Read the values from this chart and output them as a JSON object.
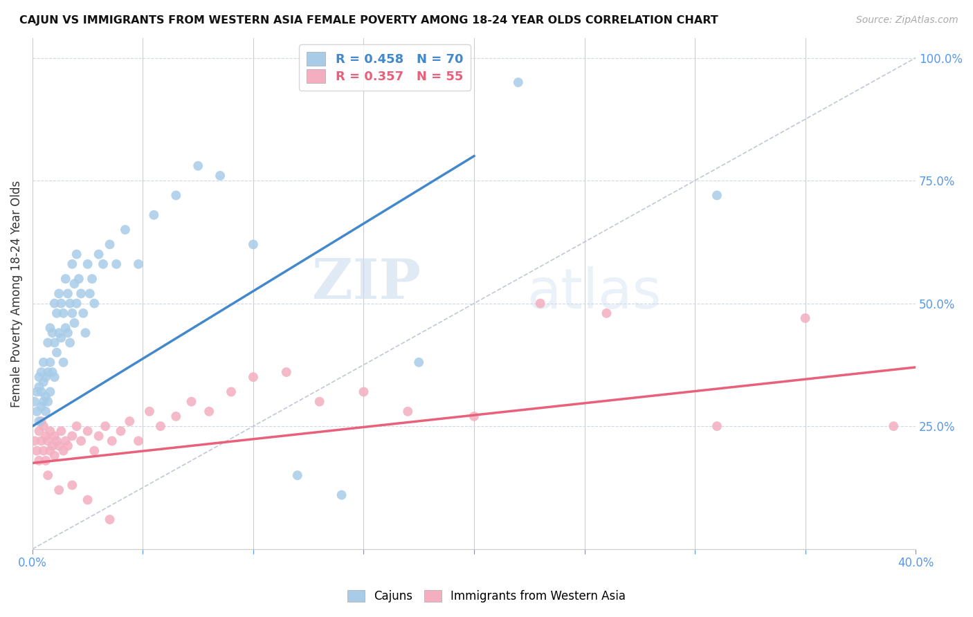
{
  "title": "CAJUN VS IMMIGRANTS FROM WESTERN ASIA FEMALE POVERTY AMONG 18-24 YEAR OLDS CORRELATION CHART",
  "source": "Source: ZipAtlas.com",
  "ylabel": "Female Poverty Among 18-24 Year Olds",
  "blue_R": 0.458,
  "blue_N": 70,
  "pink_R": 0.357,
  "pink_N": 55,
  "blue_color": "#a8cce8",
  "pink_color": "#f4aec0",
  "blue_line_color": "#4488cc",
  "pink_line_color": "#e8607a",
  "ref_line_color": "#c0c8d8",
  "legend_label_blue": "Cajuns",
  "legend_label_pink": "Immigrants from Western Asia",
  "watermark_zip": "ZIP",
  "watermark_atlas": "atlas",
  "blue_line_x": [
    0.0,
    0.2
  ],
  "blue_line_y": [
    0.25,
    0.8
  ],
  "pink_line_x": [
    0.0,
    0.4
  ],
  "pink_line_y": [
    0.175,
    0.37
  ],
  "ref_line_x": [
    0.0,
    0.4
  ],
  "ref_line_y": [
    0.0,
    1.0
  ],
  "xmin": 0.0,
  "xmax": 0.4,
  "ymin": 0.0,
  "ymax": 1.04,
  "blue_scatter_x": [
    0.001,
    0.002,
    0.002,
    0.003,
    0.003,
    0.003,
    0.004,
    0.004,
    0.004,
    0.005,
    0.005,
    0.005,
    0.006,
    0.006,
    0.006,
    0.007,
    0.007,
    0.007,
    0.008,
    0.008,
    0.008,
    0.009,
    0.009,
    0.01,
    0.01,
    0.01,
    0.011,
    0.011,
    0.012,
    0.012,
    0.013,
    0.013,
    0.014,
    0.014,
    0.015,
    0.015,
    0.016,
    0.016,
    0.017,
    0.017,
    0.018,
    0.018,
    0.019,
    0.019,
    0.02,
    0.02,
    0.021,
    0.022,
    0.023,
    0.024,
    0.025,
    0.026,
    0.027,
    0.028,
    0.03,
    0.032,
    0.035,
    0.038,
    0.042,
    0.048,
    0.055,
    0.065,
    0.075,
    0.085,
    0.1,
    0.12,
    0.14,
    0.175,
    0.22,
    0.31
  ],
  "blue_scatter_y": [
    0.3,
    0.32,
    0.28,
    0.35,
    0.33,
    0.26,
    0.32,
    0.29,
    0.36,
    0.3,
    0.34,
    0.38,
    0.31,
    0.28,
    0.35,
    0.42,
    0.36,
    0.3,
    0.45,
    0.38,
    0.32,
    0.44,
    0.36,
    0.5,
    0.42,
    0.35,
    0.48,
    0.4,
    0.52,
    0.44,
    0.5,
    0.43,
    0.48,
    0.38,
    0.55,
    0.45,
    0.52,
    0.44,
    0.5,
    0.42,
    0.58,
    0.48,
    0.54,
    0.46,
    0.6,
    0.5,
    0.55,
    0.52,
    0.48,
    0.44,
    0.58,
    0.52,
    0.55,
    0.5,
    0.6,
    0.58,
    0.62,
    0.58,
    0.65,
    0.58,
    0.68,
    0.72,
    0.78,
    0.76,
    0.62,
    0.15,
    0.11,
    0.38,
    0.95,
    0.72
  ],
  "pink_scatter_x": [
    0.001,
    0.002,
    0.003,
    0.003,
    0.004,
    0.004,
    0.005,
    0.005,
    0.006,
    0.006,
    0.007,
    0.008,
    0.008,
    0.009,
    0.01,
    0.01,
    0.011,
    0.012,
    0.013,
    0.014,
    0.015,
    0.016,
    0.018,
    0.02,
    0.022,
    0.025,
    0.028,
    0.03,
    0.033,
    0.036,
    0.04,
    0.044,
    0.048,
    0.053,
    0.058,
    0.065,
    0.072,
    0.08,
    0.09,
    0.1,
    0.115,
    0.13,
    0.15,
    0.17,
    0.2,
    0.23,
    0.26,
    0.31,
    0.35,
    0.39,
    0.007,
    0.012,
    0.018,
    0.025,
    0.035
  ],
  "pink_scatter_y": [
    0.22,
    0.2,
    0.24,
    0.18,
    0.22,
    0.26,
    0.2,
    0.25,
    0.18,
    0.23,
    0.22,
    0.2,
    0.24,
    0.21,
    0.23,
    0.19,
    0.22,
    0.21,
    0.24,
    0.2,
    0.22,
    0.21,
    0.23,
    0.25,
    0.22,
    0.24,
    0.2,
    0.23,
    0.25,
    0.22,
    0.24,
    0.26,
    0.22,
    0.28,
    0.25,
    0.27,
    0.3,
    0.28,
    0.32,
    0.35,
    0.36,
    0.3,
    0.32,
    0.28,
    0.27,
    0.5,
    0.48,
    0.25,
    0.47,
    0.25,
    0.15,
    0.12,
    0.13,
    0.1,
    0.06
  ]
}
